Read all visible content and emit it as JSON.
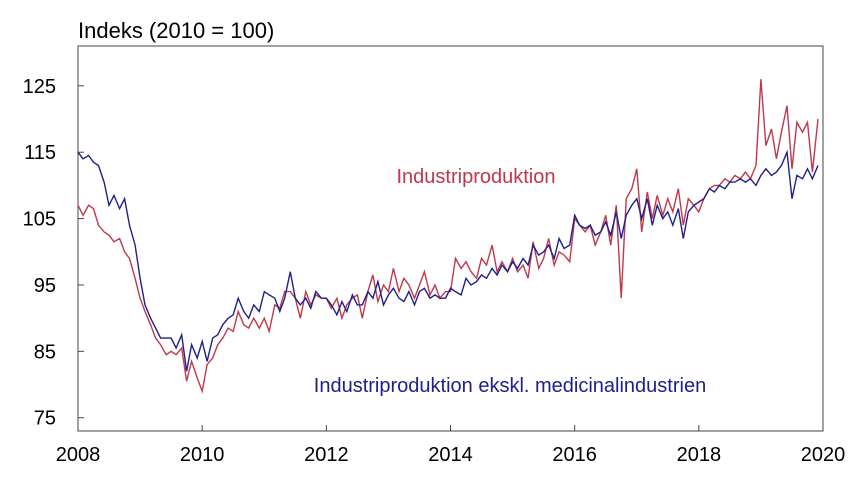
{
  "chart_data": {
    "type": "line",
    "title": "",
    "xlabel": "",
    "ylabel": "Indeks (2010 = 100)",
    "xlim": [
      2008,
      2020
    ],
    "ylim": [
      73,
      131
    ],
    "x_ticks": [
      2008,
      2010,
      2012,
      2014,
      2016,
      2018,
      2020
    ],
    "y_ticks": [
      75,
      85,
      95,
      105,
      115,
      125
    ],
    "x_tick_labels": [
      "2008",
      "2010",
      "2012",
      "2014",
      "2016",
      "2018",
      "2020"
    ],
    "y_tick_labels": [
      "75",
      "85",
      "95",
      "105",
      "115",
      "125"
    ],
    "grid": false,
    "series": [
      {
        "name": "Industriproduktion",
        "color": "#c0384a",
        "points": [
          [
            2008.0,
            107.0
          ],
          [
            2008.08,
            105.5
          ],
          [
            2008.17,
            107.0
          ],
          [
            2008.25,
            106.5
          ],
          [
            2008.33,
            104.0
          ],
          [
            2008.42,
            103.0
          ],
          [
            2008.5,
            102.5
          ],
          [
            2008.58,
            101.5
          ],
          [
            2008.67,
            102.0
          ],
          [
            2008.75,
            100.0
          ],
          [
            2008.83,
            99.0
          ],
          [
            2008.92,
            96.0
          ],
          [
            2009.0,
            93.0
          ],
          [
            2009.08,
            91.0
          ],
          [
            2009.17,
            89.0
          ],
          [
            2009.25,
            87.0
          ],
          [
            2009.33,
            86.0
          ],
          [
            2009.42,
            84.5
          ],
          [
            2009.5,
            85.0
          ],
          [
            2009.58,
            84.5
          ],
          [
            2009.67,
            85.5
          ],
          [
            2009.75,
            80.5
          ],
          [
            2009.83,
            83.5
          ],
          [
            2009.92,
            81.0
          ],
          [
            2010.0,
            79.0
          ],
          [
            2010.08,
            83.0
          ],
          [
            2010.17,
            84.0
          ],
          [
            2010.25,
            86.0
          ],
          [
            2010.33,
            87.0
          ],
          [
            2010.42,
            88.5
          ],
          [
            2010.5,
            88.0
          ],
          [
            2010.58,
            91.0
          ],
          [
            2010.67,
            89.0
          ],
          [
            2010.75,
            88.5
          ],
          [
            2010.83,
            90.0
          ],
          [
            2010.92,
            88.5
          ],
          [
            2011.0,
            90.0
          ],
          [
            2011.08,
            88.0
          ],
          [
            2011.17,
            92.0
          ],
          [
            2011.25,
            91.5
          ],
          [
            2011.33,
            94.0
          ],
          [
            2011.42,
            94.0
          ],
          [
            2011.5,
            93.0
          ],
          [
            2011.58,
            90.0
          ],
          [
            2011.67,
            94.0
          ],
          [
            2011.75,
            92.0
          ],
          [
            2011.83,
            93.5
          ],
          [
            2011.92,
            93.0
          ],
          [
            2012.0,
            93.0
          ],
          [
            2012.08,
            91.5
          ],
          [
            2012.17,
            93.0
          ],
          [
            2012.25,
            90.0
          ],
          [
            2012.33,
            92.0
          ],
          [
            2012.42,
            93.0
          ],
          [
            2012.5,
            93.5
          ],
          [
            2012.58,
            90.0
          ],
          [
            2012.67,
            94.0
          ],
          [
            2012.75,
            96.5
          ],
          [
            2012.83,
            92.5
          ],
          [
            2012.92,
            95.0
          ],
          [
            2013.0,
            94.0
          ],
          [
            2013.08,
            97.5
          ],
          [
            2013.17,
            94.0
          ],
          [
            2013.25,
            96.0
          ],
          [
            2013.33,
            95.0
          ],
          [
            2013.42,
            93.0
          ],
          [
            2013.5,
            95.0
          ],
          [
            2013.58,
            97.0
          ],
          [
            2013.67,
            93.5
          ],
          [
            2013.75,
            95.0
          ],
          [
            2013.83,
            93.0
          ],
          [
            2013.92,
            94.0
          ],
          [
            2014.0,
            94.0
          ],
          [
            2014.08,
            99.0
          ],
          [
            2014.17,
            97.5
          ],
          [
            2014.25,
            98.5
          ],
          [
            2014.33,
            97.0
          ],
          [
            2014.42,
            96.0
          ],
          [
            2014.5,
            99.0
          ],
          [
            2014.58,
            98.0
          ],
          [
            2014.67,
            101.0
          ],
          [
            2014.75,
            97.0
          ],
          [
            2014.83,
            98.5
          ],
          [
            2014.92,
            97.0
          ],
          [
            2015.0,
            99.0
          ],
          [
            2015.08,
            97.0
          ],
          [
            2015.17,
            98.0
          ],
          [
            2015.25,
            96.0
          ],
          [
            2015.33,
            101.5
          ],
          [
            2015.42,
            97.5
          ],
          [
            2015.5,
            99.0
          ],
          [
            2015.58,
            102.0
          ],
          [
            2015.67,
            98.0
          ],
          [
            2015.75,
            100.0
          ],
          [
            2015.83,
            99.5
          ],
          [
            2015.92,
            98.5
          ],
          [
            2016.0,
            105.0
          ],
          [
            2016.08,
            104.0
          ],
          [
            2016.17,
            103.0
          ],
          [
            2016.25,
            104.0
          ],
          [
            2016.33,
            101.0
          ],
          [
            2016.42,
            103.0
          ],
          [
            2016.5,
            105.5
          ],
          [
            2016.58,
            101.0
          ],
          [
            2016.67,
            107.0
          ],
          [
            2016.75,
            93.0
          ],
          [
            2016.83,
            108.0
          ],
          [
            2016.92,
            109.5
          ],
          [
            2017.0,
            112.5
          ],
          [
            2017.08,
            103.0
          ],
          [
            2017.17,
            109.0
          ],
          [
            2017.25,
            105.0
          ],
          [
            2017.33,
            108.5
          ],
          [
            2017.42,
            105.5
          ],
          [
            2017.5,
            108.0
          ],
          [
            2017.58,
            106.0
          ],
          [
            2017.67,
            109.5
          ],
          [
            2017.75,
            104.0
          ],
          [
            2017.83,
            108.0
          ],
          [
            2017.92,
            107.0
          ],
          [
            2018.0,
            106.0
          ],
          [
            2018.08,
            108.0
          ],
          [
            2018.17,
            109.5
          ],
          [
            2018.25,
            110.0
          ],
          [
            2018.33,
            110.0
          ],
          [
            2018.42,
            111.0
          ],
          [
            2018.5,
            110.5
          ],
          [
            2018.58,
            111.5
          ],
          [
            2018.67,
            111.0
          ],
          [
            2018.75,
            112.0
          ],
          [
            2018.83,
            111.0
          ],
          [
            2018.92,
            113.0
          ],
          [
            2019.0,
            126.0
          ],
          [
            2019.08,
            116.0
          ],
          [
            2019.17,
            118.5
          ],
          [
            2019.25,
            114.0
          ],
          [
            2019.33,
            118.0
          ],
          [
            2019.42,
            122.0
          ],
          [
            2019.5,
            112.5
          ],
          [
            2019.58,
            119.5
          ],
          [
            2019.67,
            118.0
          ],
          [
            2019.75,
            119.5
          ],
          [
            2019.83,
            112.0
          ],
          [
            2019.92,
            120.0
          ]
        ]
      },
      {
        "name": "Industriproduktion ekskl. medicinalindustrien",
        "color": "#20208c",
        "points": [
          [
            2008.0,
            115.0
          ],
          [
            2008.08,
            114.0
          ],
          [
            2008.17,
            114.5
          ],
          [
            2008.25,
            113.5
          ],
          [
            2008.33,
            113.0
          ],
          [
            2008.42,
            110.5
          ],
          [
            2008.5,
            107.0
          ],
          [
            2008.58,
            108.5
          ],
          [
            2008.67,
            106.5
          ],
          [
            2008.75,
            108.0
          ],
          [
            2008.83,
            104.0
          ],
          [
            2008.92,
            101.0
          ],
          [
            2009.0,
            96.0
          ],
          [
            2009.08,
            92.0
          ],
          [
            2009.17,
            90.0
          ],
          [
            2009.25,
            88.5
          ],
          [
            2009.33,
            87.0
          ],
          [
            2009.42,
            87.0
          ],
          [
            2009.5,
            87.0
          ],
          [
            2009.58,
            85.5
          ],
          [
            2009.67,
            87.5
          ],
          [
            2009.75,
            82.0
          ],
          [
            2009.83,
            86.0
          ],
          [
            2009.92,
            84.0
          ],
          [
            2010.0,
            86.5
          ],
          [
            2010.08,
            83.5
          ],
          [
            2010.17,
            87.0
          ],
          [
            2010.25,
            87.5
          ],
          [
            2010.33,
            89.0
          ],
          [
            2010.42,
            90.0
          ],
          [
            2010.5,
            90.5
          ],
          [
            2010.58,
            93.0
          ],
          [
            2010.67,
            91.0
          ],
          [
            2010.75,
            90.0
          ],
          [
            2010.83,
            92.0
          ],
          [
            2010.92,
            91.0
          ],
          [
            2011.0,
            94.0
          ],
          [
            2011.08,
            93.5
          ],
          [
            2011.17,
            93.0
          ],
          [
            2011.25,
            91.0
          ],
          [
            2011.33,
            93.0
          ],
          [
            2011.42,
            97.0
          ],
          [
            2011.5,
            93.0
          ],
          [
            2011.58,
            92.0
          ],
          [
            2011.67,
            93.0
          ],
          [
            2011.75,
            91.5
          ],
          [
            2011.83,
            94.0
          ],
          [
            2011.92,
            93.0
          ],
          [
            2012.0,
            93.0
          ],
          [
            2012.08,
            92.0
          ],
          [
            2012.17,
            90.5
          ],
          [
            2012.25,
            92.5
          ],
          [
            2012.33,
            91.0
          ],
          [
            2012.42,
            93.5
          ],
          [
            2012.5,
            92.0
          ],
          [
            2012.58,
            92.0
          ],
          [
            2012.67,
            94.0
          ],
          [
            2012.75,
            93.0
          ],
          [
            2012.83,
            95.5
          ],
          [
            2012.92,
            92.0
          ],
          [
            2013.0,
            93.5
          ],
          [
            2013.08,
            94.5
          ],
          [
            2013.17,
            93.0
          ],
          [
            2013.25,
            92.5
          ],
          [
            2013.33,
            94.0
          ],
          [
            2013.42,
            92.0
          ],
          [
            2013.5,
            94.0
          ],
          [
            2013.58,
            94.5
          ],
          [
            2013.67,
            93.0
          ],
          [
            2013.75,
            93.5
          ],
          [
            2013.83,
            93.0
          ],
          [
            2013.92,
            93.0
          ],
          [
            2014.0,
            94.5
          ],
          [
            2014.08,
            94.0
          ],
          [
            2014.17,
            93.5
          ],
          [
            2014.25,
            96.0
          ],
          [
            2014.33,
            95.0
          ],
          [
            2014.42,
            95.5
          ],
          [
            2014.5,
            96.5
          ],
          [
            2014.58,
            96.0
          ],
          [
            2014.67,
            97.5
          ],
          [
            2014.75,
            96.5
          ],
          [
            2014.83,
            98.0
          ],
          [
            2014.92,
            97.0
          ],
          [
            2015.0,
            98.5
          ],
          [
            2015.08,
            97.5
          ],
          [
            2015.17,
            99.0
          ],
          [
            2015.25,
            98.0
          ],
          [
            2015.33,
            101.0
          ],
          [
            2015.42,
            99.5
          ],
          [
            2015.5,
            100.0
          ],
          [
            2015.58,
            101.0
          ],
          [
            2015.67,
            99.0
          ],
          [
            2015.75,
            102.0
          ],
          [
            2015.83,
            100.5
          ],
          [
            2015.92,
            101.0
          ],
          [
            2016.0,
            105.5
          ],
          [
            2016.08,
            104.0
          ],
          [
            2016.17,
            103.5
          ],
          [
            2016.25,
            104.0
          ],
          [
            2016.33,
            102.5
          ],
          [
            2016.42,
            103.0
          ],
          [
            2016.5,
            104.5
          ],
          [
            2016.58,
            102.5
          ],
          [
            2016.67,
            106.0
          ],
          [
            2016.75,
            102.0
          ],
          [
            2016.83,
            105.5
          ],
          [
            2016.92,
            107.0
          ],
          [
            2017.0,
            108.0
          ],
          [
            2017.08,
            105.0
          ],
          [
            2017.17,
            108.0
          ],
          [
            2017.25,
            104.0
          ],
          [
            2017.33,
            107.0
          ],
          [
            2017.42,
            105.0
          ],
          [
            2017.5,
            106.0
          ],
          [
            2017.58,
            104.0
          ],
          [
            2017.67,
            106.5
          ],
          [
            2017.75,
            102.0
          ],
          [
            2017.83,
            106.0
          ],
          [
            2017.92,
            107.0
          ],
          [
            2018.0,
            107.5
          ],
          [
            2018.08,
            108.0
          ],
          [
            2018.17,
            109.5
          ],
          [
            2018.25,
            109.0
          ],
          [
            2018.33,
            110.0
          ],
          [
            2018.42,
            109.5
          ],
          [
            2018.5,
            110.5
          ],
          [
            2018.58,
            110.5
          ],
          [
            2018.67,
            111.0
          ],
          [
            2018.75,
            110.5
          ],
          [
            2018.83,
            111.0
          ],
          [
            2018.92,
            110.0
          ],
          [
            2019.0,
            111.5
          ],
          [
            2019.08,
            112.5
          ],
          [
            2019.17,
            111.5
          ],
          [
            2019.25,
            112.0
          ],
          [
            2019.33,
            113.0
          ],
          [
            2019.42,
            115.0
          ],
          [
            2019.5,
            108.0
          ],
          [
            2019.58,
            111.5
          ],
          [
            2019.67,
            111.0
          ],
          [
            2019.75,
            112.5
          ],
          [
            2019.83,
            111.0
          ],
          [
            2019.92,
            113.0
          ]
        ]
      }
    ],
    "annotations": [
      {
        "text": "Industriproduktion",
        "series": 0,
        "color": "#c0384a"
      },
      {
        "text": "Industriproduktion ekskl. medicinalindustrien",
        "series": 1,
        "color": "#20208c"
      }
    ]
  }
}
